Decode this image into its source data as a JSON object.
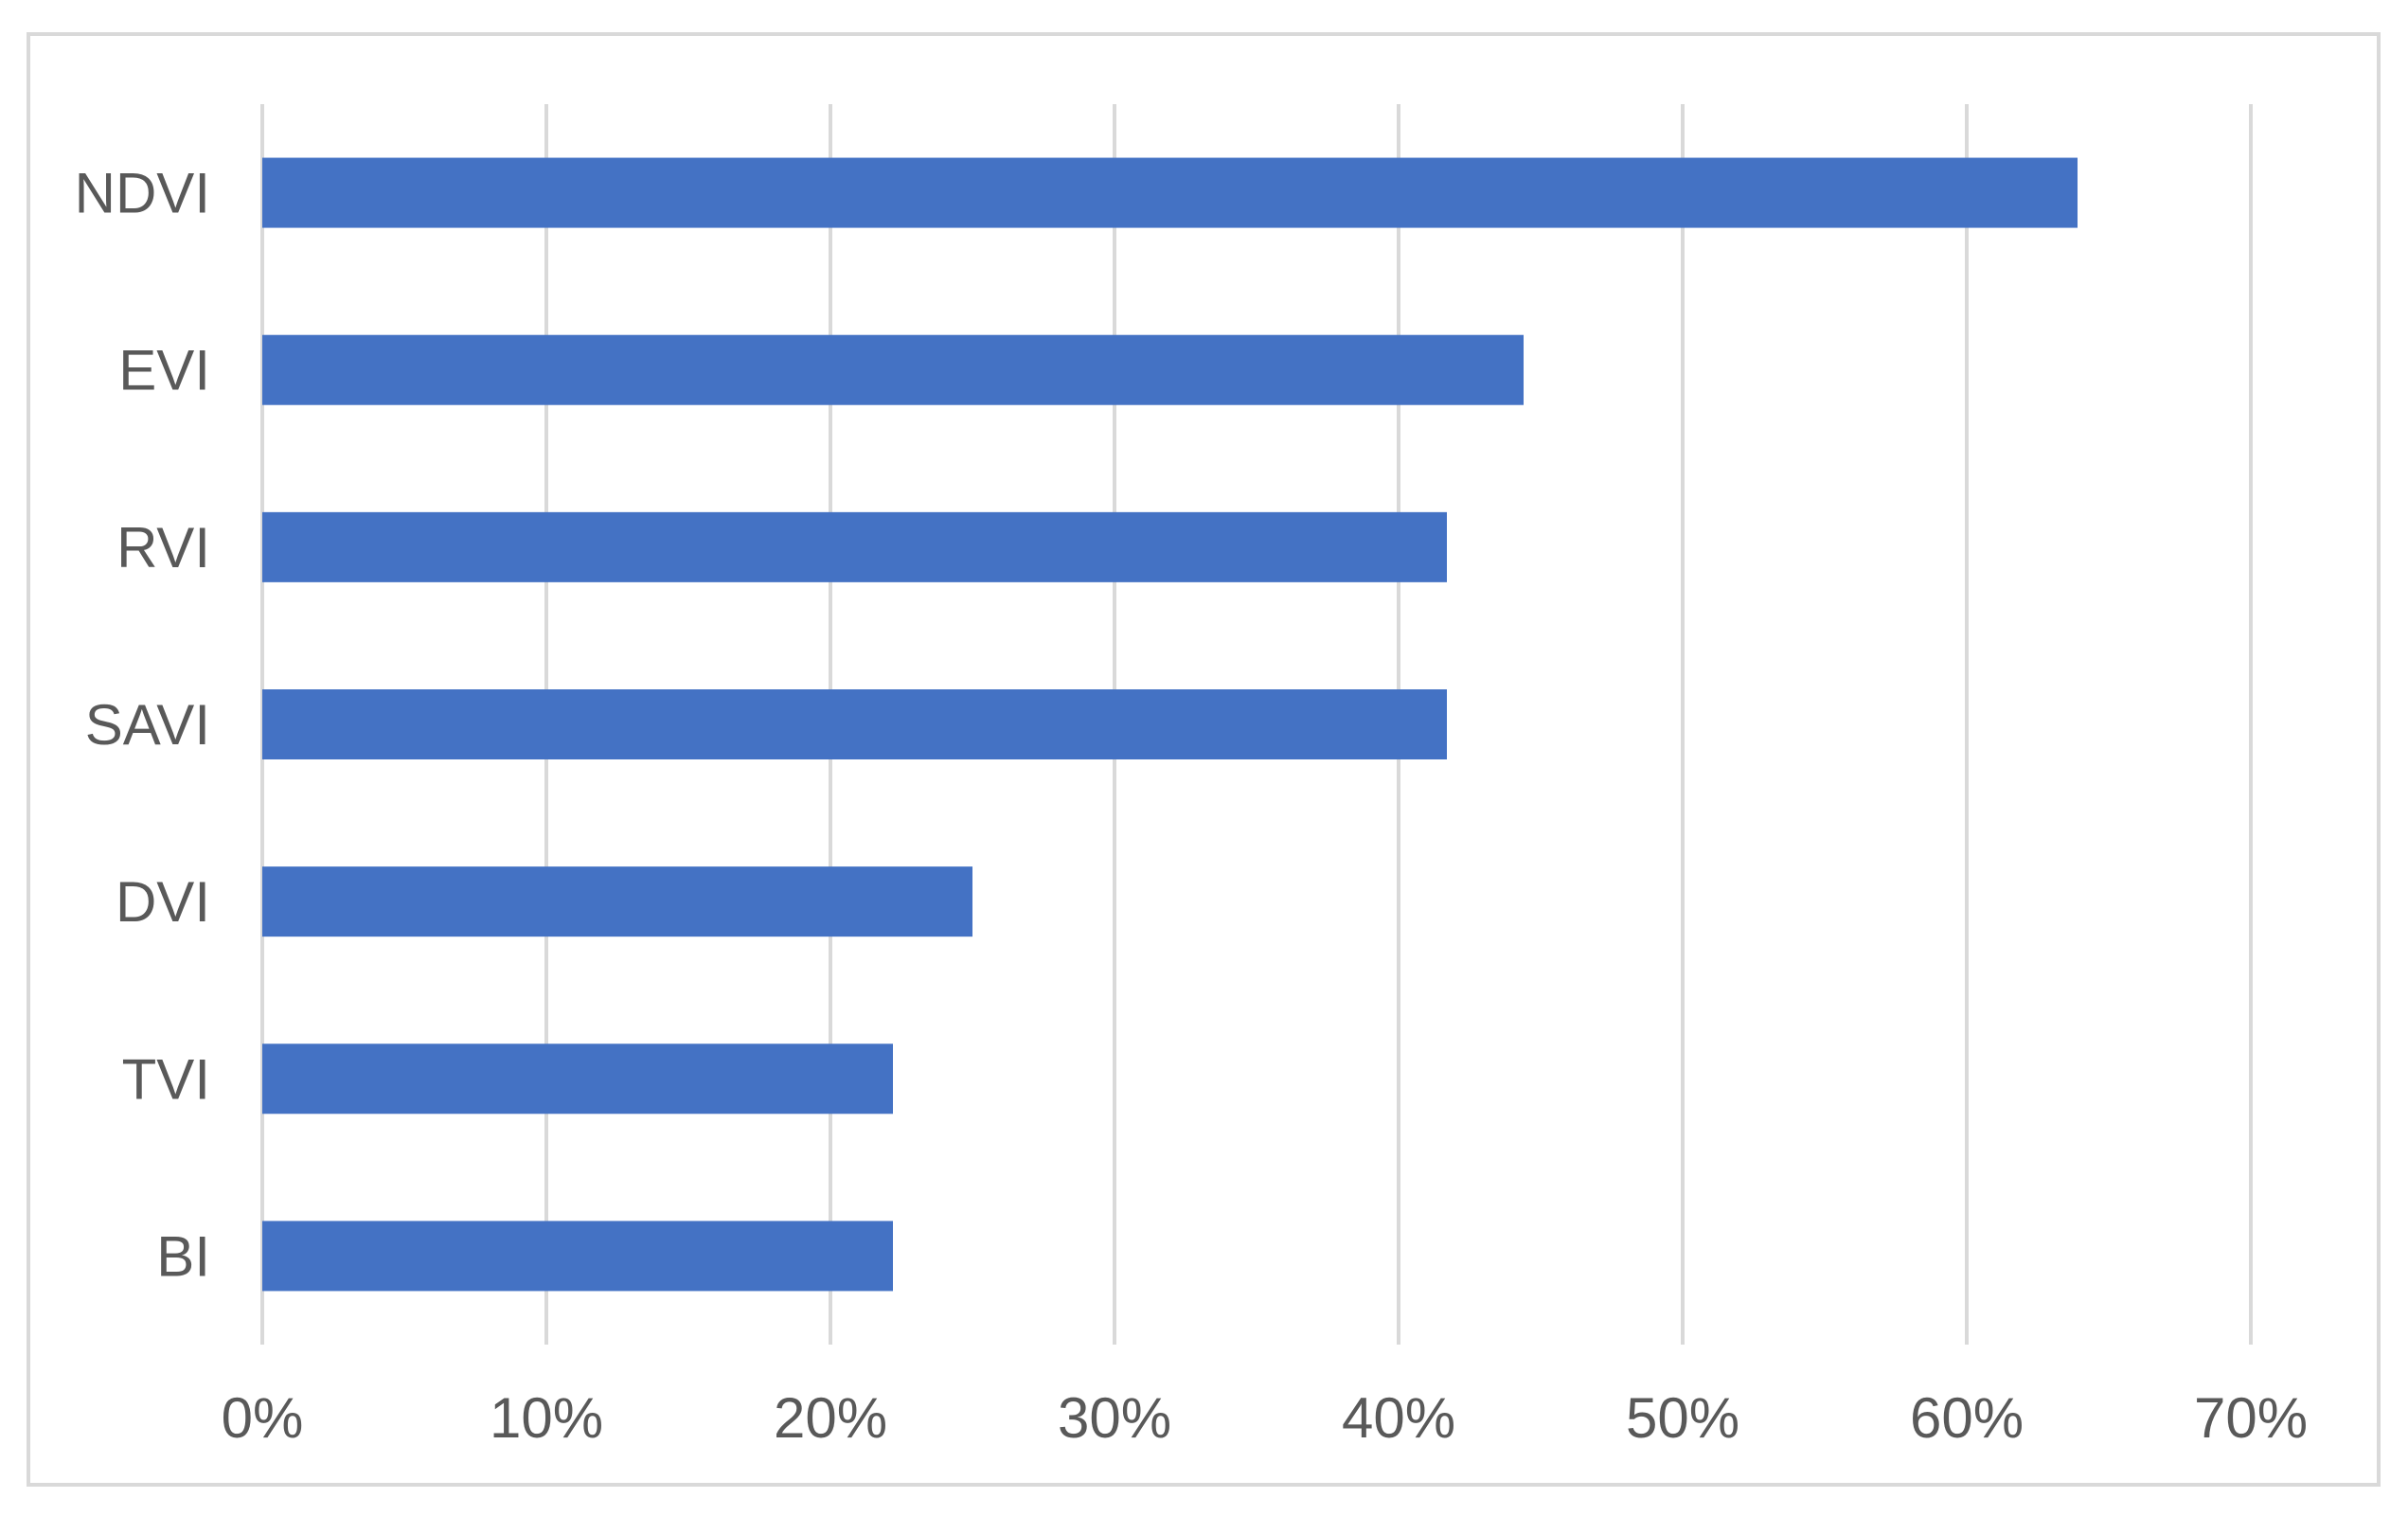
{
  "chart_data": {
    "type": "bar",
    "orientation": "horizontal",
    "categories": [
      "NDVI",
      "EVI",
      "RVI",
      "SAVI",
      "DVI",
      "TVI",
      "BI"
    ],
    "values": [
      0.639,
      0.444,
      0.417,
      0.417,
      0.25,
      0.222,
      0.222
    ],
    "title": "",
    "xlabel": "",
    "ylabel": "",
    "xlim": [
      0,
      0.7
    ],
    "x_ticks": [
      0,
      0.1,
      0.2,
      0.3,
      0.4,
      0.5,
      0.6,
      0.7
    ],
    "x_tick_labels": [
      "0%",
      "10%",
      "20%",
      "30%",
      "40%",
      "50%",
      "60%",
      "70%"
    ],
    "grid": "vertical",
    "legend": "none",
    "bar_color": "#4472C4"
  }
}
